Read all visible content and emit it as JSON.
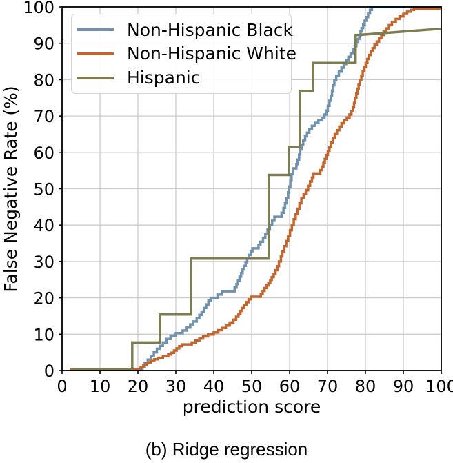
{
  "figure": {
    "caption": "(b) Ridge regression"
  },
  "chart_data": {
    "type": "line",
    "subtype": "empirical-cdf-step-curves",
    "title": "",
    "xlabel": "prediction score",
    "ylabel": "False Negative Rate (%)",
    "xlim": [
      0,
      100
    ],
    "ylim": [
      0,
      100
    ],
    "xticks": [
      0,
      10,
      20,
      30,
      40,
      50,
      60,
      70,
      80,
      90,
      100
    ],
    "yticks": [
      0,
      10,
      20,
      30,
      40,
      50,
      60,
      70,
      80,
      90,
      100
    ],
    "grid": true,
    "grid_color": "#cccccc",
    "legend_position": "upper left",
    "series": [
      {
        "name": "Non-Hispanic Black",
        "color": "#7191ac",
        "interp": "step",
        "points": [
          [
            2,
            0.4
          ],
          [
            20.8,
            0.4
          ],
          [
            21.2,
            1
          ],
          [
            21.8,
            2
          ],
          [
            22.6,
            3
          ],
          [
            23.4,
            4
          ],
          [
            24.2,
            5
          ],
          [
            25,
            6
          ],
          [
            25.8,
            6.8
          ],
          [
            26.6,
            7.7
          ],
          [
            27.5,
            8.7
          ],
          [
            28.6,
            9.6
          ],
          [
            30,
            10.3
          ],
          [
            31.8,
            11
          ],
          [
            32.9,
            11.8
          ],
          [
            33.8,
            12.7
          ],
          [
            34.6,
            13.5
          ],
          [
            35.5,
            14.4
          ],
          [
            36.2,
            15.3
          ],
          [
            36.8,
            16.2
          ],
          [
            37.4,
            17.2
          ],
          [
            38,
            18.2
          ],
          [
            38.6,
            19.2
          ],
          [
            39.2,
            20
          ],
          [
            41,
            20.9
          ],
          [
            42.2,
            21.8
          ],
          [
            45.5,
            22.8
          ],
          [
            46,
            23.8
          ],
          [
            46.4,
            24.8
          ],
          [
            46.8,
            25.8
          ],
          [
            47.2,
            26.8
          ],
          [
            47.6,
            27.8
          ],
          [
            48,
            28.8
          ],
          [
            48.4,
            29.8
          ],
          [
            48.8,
            30.8
          ],
          [
            49.3,
            31.8
          ],
          [
            49.8,
            32.8
          ],
          [
            50.2,
            33.6
          ],
          [
            51.8,
            34.5
          ],
          [
            52.3,
            35.4
          ],
          [
            53,
            36.5
          ],
          [
            53.6,
            37.6
          ],
          [
            54.2,
            38.8
          ],
          [
            54.8,
            40
          ],
          [
            55.4,
            41.2
          ],
          [
            56,
            42.3
          ],
          [
            57.9,
            43.4
          ],
          [
            58.4,
            44.7
          ],
          [
            58.8,
            46
          ],
          [
            59.2,
            47.4
          ],
          [
            59.6,
            49
          ],
          [
            59.9,
            50.6
          ],
          [
            60.2,
            52.2
          ],
          [
            60.5,
            54
          ],
          [
            60.9,
            55.6
          ],
          [
            61.8,
            56.8
          ],
          [
            62.1,
            58
          ],
          [
            62.5,
            59.4
          ],
          [
            62.8,
            60.8
          ],
          [
            63.2,
            62
          ],
          [
            63.6,
            63.2
          ],
          [
            64.1,
            64.4
          ],
          [
            64.6,
            65.4
          ],
          [
            65.2,
            66.4
          ],
          [
            65.9,
            67.3
          ],
          [
            66.7,
            68.1
          ],
          [
            67.6,
            68.8
          ],
          [
            68.5,
            69.5
          ],
          [
            69.2,
            70.4
          ],
          [
            69.7,
            71.5
          ],
          [
            70.1,
            72.8
          ],
          [
            70.5,
            74.2
          ],
          [
            70.9,
            75.6
          ],
          [
            71.2,
            77
          ],
          [
            71.5,
            78.4
          ],
          [
            71.8,
            79.8
          ],
          [
            72.3,
            81
          ],
          [
            73,
            82.2
          ],
          [
            73.7,
            83.3
          ],
          [
            74.3,
            84.3
          ],
          [
            74.9,
            85.3
          ],
          [
            75.5,
            86.3
          ],
          [
            76.1,
            87.3
          ],
          [
            76.7,
            88.3
          ],
          [
            77.2,
            89.2
          ],
          [
            77.6,
            90.2
          ],
          [
            78,
            91.2
          ],
          [
            78.4,
            92.2
          ],
          [
            78.7,
            93.2
          ],
          [
            79,
            94.2
          ],
          [
            79.4,
            95.2
          ],
          [
            79.8,
            96.2
          ],
          [
            80.2,
            97.2
          ],
          [
            80.7,
            98.2
          ],
          [
            81.2,
            99.2
          ],
          [
            81.7,
            100
          ],
          [
            100,
            100
          ]
        ]
      },
      {
        "name": "Non-Hispanic White",
        "color": "#c1662f",
        "interp": "step",
        "points": [
          [
            2,
            0.4
          ],
          [
            20.3,
            0.4
          ],
          [
            20.7,
            1
          ],
          [
            21.4,
            1.5
          ],
          [
            22.3,
            2.1
          ],
          [
            23.3,
            2.6
          ],
          [
            24.3,
            3.1
          ],
          [
            25.3,
            3.5
          ],
          [
            26.6,
            3.9
          ],
          [
            28,
            4.4
          ],
          [
            28.8,
            4.9
          ],
          [
            29.5,
            5.5
          ],
          [
            30.2,
            6.1
          ],
          [
            30.9,
            6.7
          ],
          [
            31.6,
            7.2
          ],
          [
            34.2,
            7.7
          ],
          [
            35.2,
            8.3
          ],
          [
            36.2,
            8.8
          ],
          [
            37.2,
            9.4
          ],
          [
            38.5,
            9.9
          ],
          [
            40,
            10.5
          ],
          [
            41.2,
            11.1
          ],
          [
            42.2,
            11.7
          ],
          [
            43.2,
            12.4
          ],
          [
            44.2,
            13.2
          ],
          [
            45.2,
            14
          ],
          [
            45.9,
            14.8
          ],
          [
            46.5,
            15.6
          ],
          [
            47,
            16.4
          ],
          [
            47.5,
            17.2
          ],
          [
            48,
            18
          ],
          [
            48.6,
            18.8
          ],
          [
            49.2,
            19.6
          ],
          [
            49.8,
            20.3
          ],
          [
            52.4,
            21.1
          ],
          [
            52.9,
            21.9
          ],
          [
            53.4,
            22.7
          ],
          [
            53.9,
            23.4
          ],
          [
            54.4,
            24.1
          ],
          [
            54.9,
            24.9
          ],
          [
            55.3,
            25.7
          ],
          [
            55.8,
            26.6
          ],
          [
            56.3,
            27.6
          ],
          [
            56.8,
            28.7
          ],
          [
            57.2,
            30
          ],
          [
            57.7,
            31.4
          ],
          [
            58.1,
            32.8
          ],
          [
            58.6,
            34.2
          ],
          [
            59.1,
            35.6
          ],
          [
            59.6,
            37
          ],
          [
            60.1,
            38.6
          ],
          [
            60.6,
            40.1
          ],
          [
            61.1,
            41.6
          ],
          [
            61.6,
            43
          ],
          [
            62.1,
            44.5
          ],
          [
            62.6,
            46
          ],
          [
            63.1,
            47.5
          ],
          [
            63.7,
            48.6
          ],
          [
            64.3,
            49.6
          ],
          [
            64.9,
            50.8
          ],
          [
            65.4,
            52
          ],
          [
            65.9,
            53.1
          ],
          [
            66.3,
            54.2
          ],
          [
            68.1,
            55.1
          ],
          [
            68.5,
            56.1
          ],
          [
            68.9,
            57.1
          ],
          [
            69.3,
            58.2
          ],
          [
            69.7,
            59.3
          ],
          [
            70.1,
            60.4
          ],
          [
            70.5,
            61.5
          ],
          [
            70.9,
            62.7
          ],
          [
            71.4,
            63.9
          ],
          [
            71.9,
            65
          ],
          [
            72.5,
            66.1
          ],
          [
            73.1,
            67.1
          ],
          [
            73.7,
            68
          ],
          [
            74.4,
            68.8
          ],
          [
            75.1,
            69.6
          ],
          [
            75.8,
            70.4
          ],
          [
            76.3,
            71.3
          ],
          [
            76.7,
            72.4
          ],
          [
            77,
            73.6
          ],
          [
            77.3,
            74.9
          ],
          [
            77.6,
            76.2
          ],
          [
            77.9,
            77.5
          ],
          [
            78.2,
            78.7
          ],
          [
            78.5,
            79.9
          ],
          [
            78.9,
            81.1
          ],
          [
            79.3,
            82.3
          ],
          [
            79.7,
            83.5
          ],
          [
            80.1,
            84.6
          ],
          [
            80.5,
            85.7
          ],
          [
            80.9,
            86.8
          ],
          [
            81.4,
            87.8
          ],
          [
            81.9,
            88.7
          ],
          [
            82.4,
            89.6
          ],
          [
            83,
            90.5
          ],
          [
            83.6,
            91.4
          ],
          [
            84.2,
            92.3
          ],
          [
            84.8,
            93.2
          ],
          [
            85.5,
            94.1
          ],
          [
            86.2,
            95
          ],
          [
            87,
            95.9
          ],
          [
            88,
            96.7
          ],
          [
            89,
            97.4
          ],
          [
            90,
            98.1
          ],
          [
            91,
            98.7
          ],
          [
            92,
            99.2
          ],
          [
            92.8,
            99.5
          ],
          [
            100,
            99.5
          ]
        ]
      },
      {
        "name": "Hispanic",
        "color": "#7c7d53",
        "interp": "linear",
        "points": [
          [
            2.5,
            0.4
          ],
          [
            18.5,
            0.4
          ],
          [
            18.5,
            7.7
          ],
          [
            25.8,
            7.7
          ],
          [
            25.8,
            15.4
          ],
          [
            34,
            15.4
          ],
          [
            34,
            30.8
          ],
          [
            54.5,
            30.8
          ],
          [
            54.5,
            53.8
          ],
          [
            59.8,
            53.8
          ],
          [
            59.8,
            61.5
          ],
          [
            62.7,
            61.5
          ],
          [
            62.7,
            76.9
          ],
          [
            66.2,
            76.9
          ],
          [
            66.2,
            84.6
          ],
          [
            77.4,
            84.6
          ],
          [
            77.4,
            92.3
          ],
          [
            78.2,
            92.3
          ],
          [
            100,
            94
          ]
        ]
      }
    ]
  }
}
